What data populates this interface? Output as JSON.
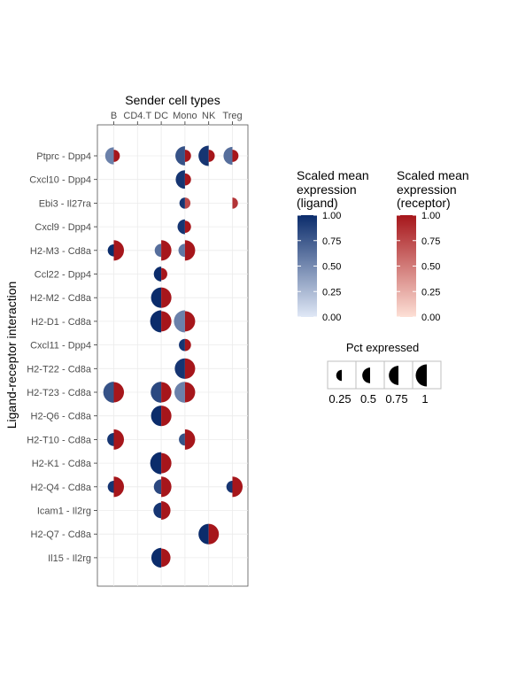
{
  "chart_data": {
    "type": "dot-half-circle",
    "title": "Sender cell types",
    "ylabel": "Ligand-receptor interaction",
    "sender_types": [
      "B",
      "CD4.T",
      "DC",
      "Mono",
      "NK",
      "Treg"
    ],
    "interactions": [
      "Ptprc - Dpp4",
      "Cxcl10 - Dpp4",
      "Ebi3 - Il27ra",
      "Cxcl9 - Dpp4",
      "H2-M3 - Cd8a",
      "Ccl22 - Dpp4",
      "H2-M2 - Cd8a",
      "H2-D1 - Cd8a",
      "Cxcl11 - Dpp4",
      "H2-T22 - Cd8a",
      "H2-T23 - Cd8a",
      "H2-Q6 - Cd8a",
      "H2-T10 - Cd8a",
      "H2-K1 - Cd8a",
      "H2-Q4 - Cd8a",
      "Icam1 - Il2rg",
      "H2-Q7 - Cd8a",
      "Il15 - Il2rg"
    ],
    "points": [
      {
        "interaction": "Ptprc - Dpp4",
        "sender": "B",
        "ligand_expr": 0.55,
        "ligand_pct": 0.6,
        "receptor_expr": 1.0,
        "receptor_pct": 0.3
      },
      {
        "interaction": "Ptprc - Dpp4",
        "sender": "Mono",
        "ligand_expr": 0.8,
        "ligand_pct": 0.75,
        "receptor_expr": 1.0,
        "receptor_pct": 0.3
      },
      {
        "interaction": "Ptprc - Dpp4",
        "sender": "NK",
        "ligand_expr": 0.95,
        "ligand_pct": 0.85,
        "receptor_expr": 1.0,
        "receptor_pct": 0.3
      },
      {
        "interaction": "Ptprc - Dpp4",
        "sender": "Treg",
        "ligand_expr": 0.65,
        "ligand_pct": 0.65,
        "receptor_expr": 1.0,
        "receptor_pct": 0.3
      },
      {
        "interaction": "Cxcl10 - Dpp4",
        "sender": "Mono",
        "ligand_expr": 0.95,
        "ligand_pct": 0.7,
        "receptor_expr": 1.0,
        "receptor_pct": 0.3
      },
      {
        "interaction": "Ebi3 - Il27ra",
        "sender": "Mono",
        "ligand_expr": 0.95,
        "ligand_pct": 0.25,
        "receptor_expr": 0.75,
        "receptor_pct": 0.25
      },
      {
        "interaction": "Ebi3 - Il27ra",
        "sender": "Treg",
        "ligand_expr": 0.0,
        "ligand_pct": 0.0,
        "receptor_expr": 0.85,
        "receptor_pct": 0.25
      },
      {
        "interaction": "Cxcl9 - Dpp4",
        "sender": "Mono",
        "ligand_expr": 0.95,
        "ligand_pct": 0.45,
        "receptor_expr": 1.0,
        "receptor_pct": 0.3
      },
      {
        "interaction": "H2-M3 - Cd8a",
        "sender": "B",
        "ligand_expr": 1.0,
        "ligand_pct": 0.3,
        "receptor_expr": 1.0,
        "receptor_pct": 0.85
      },
      {
        "interaction": "H2-M3 - Cd8a",
        "sender": "DC",
        "ligand_expr": 0.65,
        "ligand_pct": 0.35,
        "receptor_expr": 1.0,
        "receptor_pct": 0.85
      },
      {
        "interaction": "H2-M3 - Cd8a",
        "sender": "Mono",
        "ligand_expr": 0.6,
        "ligand_pct": 0.35,
        "receptor_expr": 1.0,
        "receptor_pct": 0.85
      },
      {
        "interaction": "Ccl22 - Dpp4",
        "sender": "DC",
        "ligand_expr": 1.0,
        "ligand_pct": 0.45,
        "receptor_expr": 1.0,
        "receptor_pct": 0.3
      },
      {
        "interaction": "H2-M2 - Cd8a",
        "sender": "DC",
        "ligand_expr": 1.0,
        "ligand_pct": 0.85,
        "receptor_expr": 1.0,
        "receptor_pct": 0.85
      },
      {
        "interaction": "H2-D1 - Cd8a",
        "sender": "DC",
        "ligand_expr": 1.0,
        "ligand_pct": 1.0,
        "receptor_expr": 1.0,
        "receptor_pct": 0.85
      },
      {
        "interaction": "H2-D1 - Cd8a",
        "sender": "Mono",
        "ligand_expr": 0.55,
        "ligand_pct": 1.0,
        "receptor_expr": 1.0,
        "receptor_pct": 0.85
      },
      {
        "interaction": "Cxcl11 - Dpp4",
        "sender": "Mono",
        "ligand_expr": 0.95,
        "ligand_pct": 0.3,
        "receptor_expr": 1.0,
        "receptor_pct": 0.3
      },
      {
        "interaction": "H2-T22 - Cd8a",
        "sender": "Mono",
        "ligand_expr": 0.95,
        "ligand_pct": 0.85,
        "receptor_expr": 1.0,
        "receptor_pct": 0.85
      },
      {
        "interaction": "H2-T23 - Cd8a",
        "sender": "B",
        "ligand_expr": 0.8,
        "ligand_pct": 0.9,
        "receptor_expr": 1.0,
        "receptor_pct": 0.85
      },
      {
        "interaction": "H2-T23 - Cd8a",
        "sender": "DC",
        "ligand_expr": 0.85,
        "ligand_pct": 0.9,
        "receptor_expr": 1.0,
        "receptor_pct": 0.85
      },
      {
        "interaction": "H2-T23 - Cd8a",
        "sender": "Mono",
        "ligand_expr": 0.55,
        "ligand_pct": 0.9,
        "receptor_expr": 1.0,
        "receptor_pct": 0.85
      },
      {
        "interaction": "H2-Q6 - Cd8a",
        "sender": "DC",
        "ligand_expr": 1.0,
        "ligand_pct": 0.85,
        "receptor_expr": 1.0,
        "receptor_pct": 0.85
      },
      {
        "interaction": "H2-T10 - Cd8a",
        "sender": "B",
        "ligand_expr": 0.95,
        "ligand_pct": 0.35,
        "receptor_expr": 1.0,
        "receptor_pct": 0.85
      },
      {
        "interaction": "H2-T10 - Cd8a",
        "sender": "Mono",
        "ligand_expr": 0.8,
        "ligand_pct": 0.3,
        "receptor_expr": 1.0,
        "receptor_pct": 0.85
      },
      {
        "interaction": "H2-K1 - Cd8a",
        "sender": "DC",
        "ligand_expr": 1.0,
        "ligand_pct": 1.0,
        "receptor_expr": 1.0,
        "receptor_pct": 0.85
      },
      {
        "interaction": "H2-Q4 - Cd8a",
        "sender": "B",
        "ligand_expr": 0.95,
        "ligand_pct": 0.3,
        "receptor_expr": 1.0,
        "receptor_pct": 0.85
      },
      {
        "interaction": "H2-Q4 - Cd8a",
        "sender": "DC",
        "ligand_expr": 0.85,
        "ligand_pct": 0.45,
        "receptor_expr": 1.0,
        "receptor_pct": 0.85
      },
      {
        "interaction": "H2-Q4 - Cd8a",
        "sender": "Treg",
        "ligand_expr": 0.95,
        "ligand_pct": 0.3,
        "receptor_expr": 1.0,
        "receptor_pct": 0.85
      },
      {
        "interaction": "Icam1 - Il2rg",
        "sender": "DC",
        "ligand_expr": 0.95,
        "ligand_pct": 0.5,
        "receptor_expr": 1.0,
        "receptor_pct": 0.7
      },
      {
        "interaction": "H2-Q7 - Cd8a",
        "sender": "NK",
        "ligand_expr": 1.0,
        "ligand_pct": 0.85,
        "receptor_expr": 1.0,
        "receptor_pct": 0.85
      },
      {
        "interaction": "Il15 - Il2rg",
        "sender": "DC",
        "ligand_expr": 1.0,
        "ligand_pct": 0.8,
        "receptor_expr": 1.0,
        "receptor_pct": 0.7
      }
    ],
    "ligand_legend": {
      "title": [
        "Scaled mean",
        "expression",
        "(ligand)"
      ],
      "ticks": [
        "1.00",
        "0.75",
        "0.50",
        "0.25",
        "0.00"
      ],
      "color_low": "#e0e8f6",
      "color_high": "#0b2c6b"
    },
    "receptor_legend": {
      "title": [
        "Scaled mean",
        "expression",
        "(receptor)"
      ],
      "ticks": [
        "1.00",
        "0.75",
        "0.50",
        "0.25",
        "0.00"
      ],
      "color_low": "#fde0d6",
      "color_high": "#a6161b"
    },
    "pct_legend": {
      "title": "Pct expressed",
      "values": [
        0.25,
        0.5,
        0.75,
        1
      ],
      "labels": [
        "0.25",
        "0.5",
        "0.75",
        "1"
      ]
    }
  }
}
